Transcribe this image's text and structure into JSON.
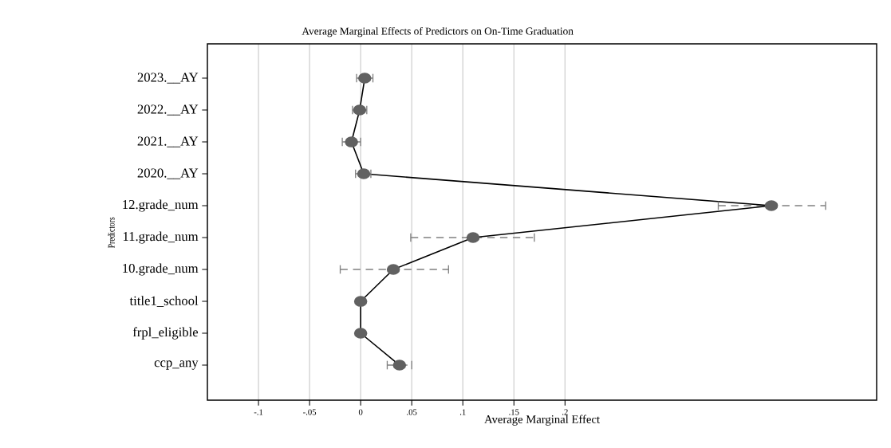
{
  "chart_data": {
    "type": "line",
    "orientation": "horizontal",
    "title": "Average Marginal Effects of Predictors on On-Time Graduation",
    "xlabel": "Average Marginal Effect",
    "ylabel": "Predictors",
    "categories": [
      "2023.__AY",
      "2022.__AY",
      "2021.__AY",
      "2020.__AY",
      "12.grade_num",
      "11.grade_num",
      "10.grade_num",
      "title1_school",
      "frpl_eligible",
      "ccp_any"
    ],
    "values": [
      0.004,
      -0.001,
      -0.009,
      0.003,
      0.402,
      0.11,
      0.032,
      0.0,
      0.0,
      0.038
    ],
    "errors": [
      [
        -0.004,
        0.012
      ],
      [
        -0.008,
        0.006
      ],
      [
        -0.018,
        0.0
      ],
      [
        -0.005,
        0.01
      ],
      [
        0.35,
        0.455
      ],
      [
        0.049,
        0.17
      ],
      [
        -0.02,
        0.086
      ],
      null,
      null,
      [
        0.026,
        0.05
      ]
    ],
    "color": "#000000",
    "xlim": [
      -0.15,
      0.505
    ],
    "xticks": [
      {
        "value": -0.1,
        "label": "-.1"
      },
      {
        "value": -0.05,
        "label": "-.05"
      },
      0,
      {
        "value": 0.05,
        "label": ".05"
      },
      {
        "value": 0.1,
        "label": ".1"
      },
      {
        "value": 0.15,
        "label": ".15"
      },
      {
        "value": 0.2,
        "label": ".2"
      }
    ],
    "grid": "x",
    "marker": "circle",
    "line_style": "solid"
  }
}
